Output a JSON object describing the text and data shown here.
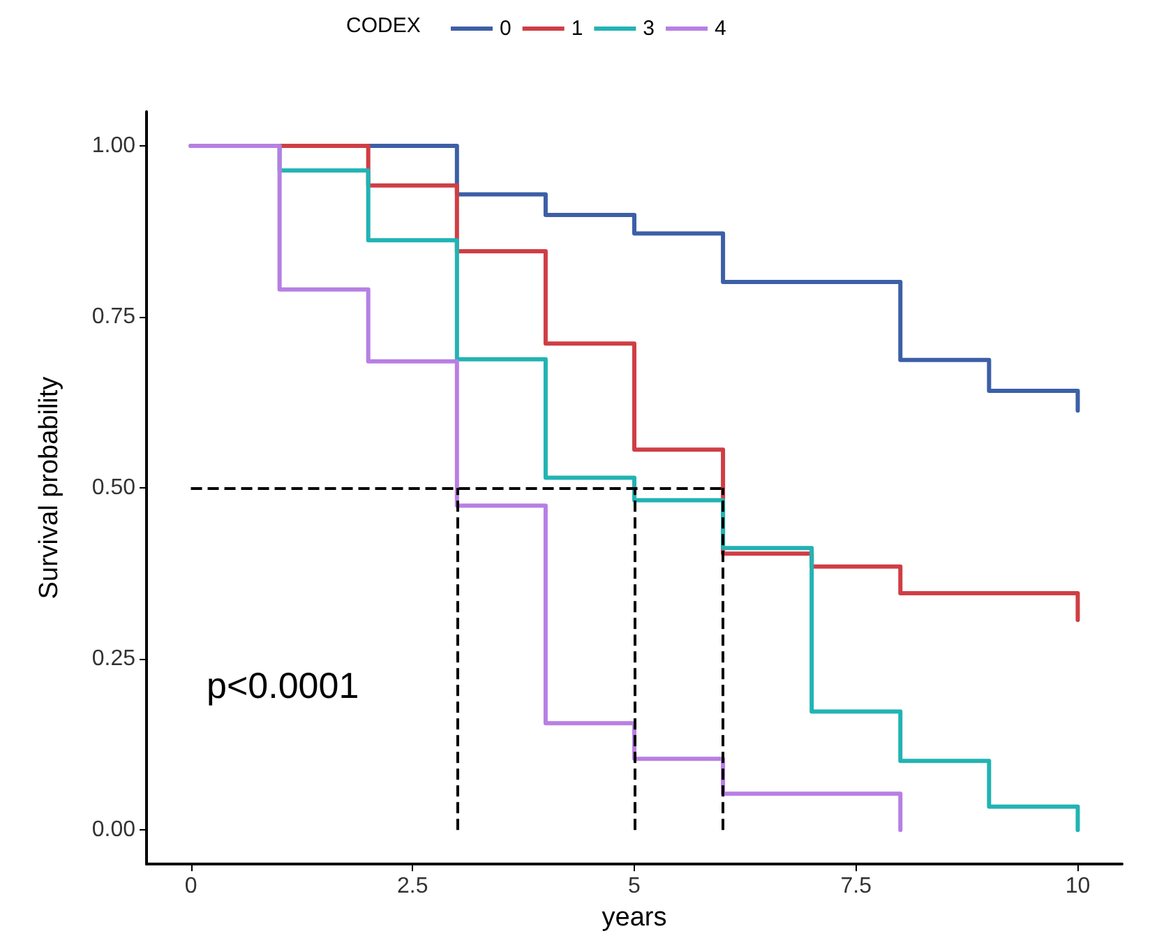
{
  "chart_data": {
    "type": "step",
    "xlabel": "years",
    "ylabel": "Survival probability",
    "legend_title": "CODEX",
    "legend": "top",
    "grid": false,
    "marker": "none",
    "line_style": "solid",
    "x": [
      0,
      1,
      2,
      3,
      4,
      5,
      6,
      7,
      8,
      9,
      10
    ],
    "series": [
      {
        "name": "0",
        "color": "#3c5fa6",
        "values": [
          1.0,
          1.0,
          1.0,
          0.929,
          0.899,
          0.872,
          0.801,
          0.801,
          0.687,
          0.642,
          0.613
        ]
      },
      {
        "name": "1",
        "color": "#cf3e44",
        "values": [
          1.0,
          1.0,
          0.942,
          0.846,
          0.711,
          0.556,
          0.404,
          0.385,
          0.346,
          0.346,
          0.307
        ]
      },
      {
        "name": "3",
        "color": "#22b3b3",
        "values": [
          1.0,
          0.964,
          0.862,
          0.688,
          0.515,
          0.482,
          0.412,
          0.173,
          0.101,
          0.034,
          0.0
        ]
      },
      {
        "name": "4",
        "color": "#b77fe3",
        "x": [
          0,
          1,
          2,
          3,
          4,
          5,
          6,
          7,
          8
        ],
        "values": [
          1.0,
          0.79,
          0.685,
          0.474,
          0.156,
          0.104,
          0.053,
          0.053,
          0.0
        ]
      }
    ],
    "xlim": [
      -0.5,
      10.5
    ],
    "xticks": [
      0,
      2.5,
      5,
      7.5,
      10
    ],
    "ylim": [
      -0.05,
      1.05
    ],
    "yticks": [
      {
        "value": 0,
        "label": "0.00"
      },
      {
        "value": 0.25,
        "label": "0.25"
      },
      {
        "value": 0.5,
        "label": "0.50"
      },
      {
        "value": 0.75,
        "label": "0.75"
      },
      {
        "value": 1,
        "label": "1.00"
      }
    ],
    "ref_lines": [
      {
        "axis": "y",
        "value": 0.5,
        "line_style": "dashed",
        "color": "#000000"
      },
      {
        "axis": "x",
        "value": 3,
        "line_style": "dashed",
        "color": "#000000"
      },
      {
        "axis": "x",
        "value": 5,
        "line_style": "dashed",
        "color": "#000000"
      },
      {
        "axis": "x",
        "value": 6,
        "line_style": "dashed",
        "color": "#000000"
      }
    ],
    "annotations": [
      "p<0.0001"
    ]
  }
}
